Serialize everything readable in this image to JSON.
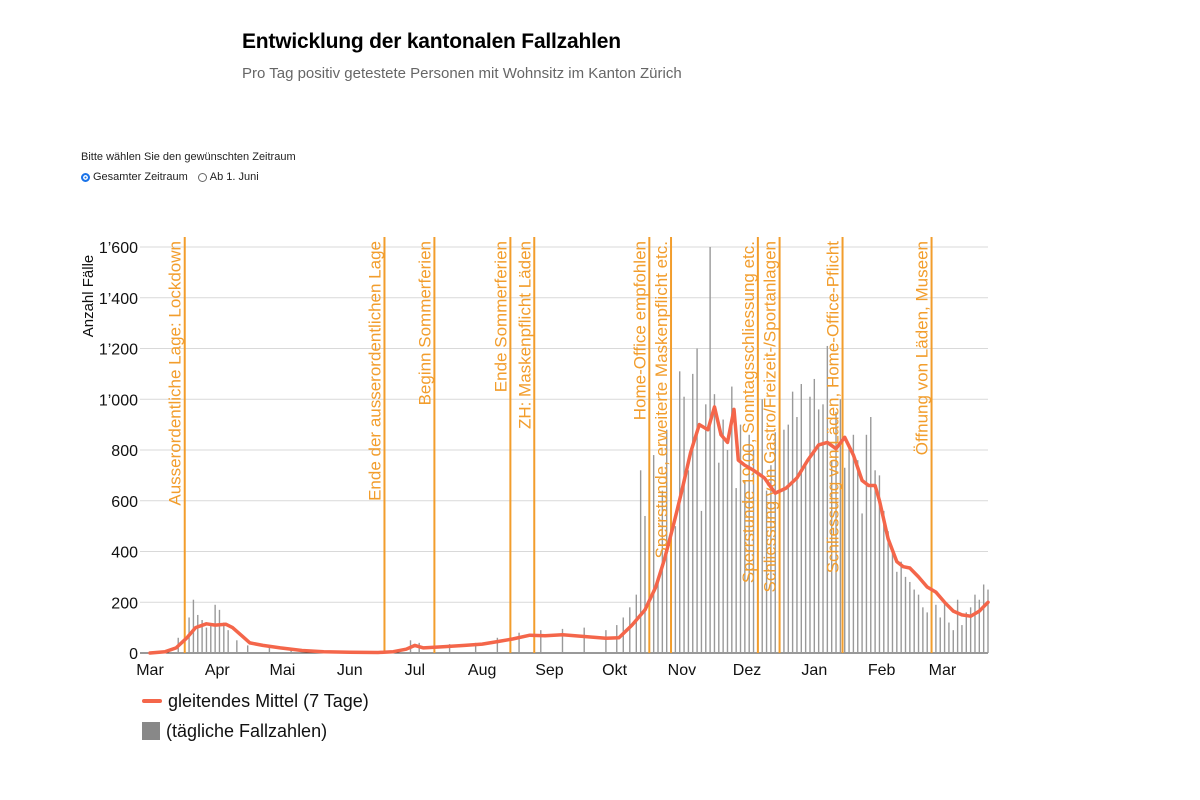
{
  "header": {
    "title": "Entwicklung der kantonalen Fallzahlen",
    "subtitle": "Pro Tag positiv getestete Personen mit Wohnsitz im Kanton Zürich"
  },
  "range_selector": {
    "prompt": "Bitte wählen Sie den gewünschten Zeitraum",
    "options": [
      {
        "label": "Gesamter Zeitraum",
        "selected": true
      },
      {
        "label": "Ab 1. Juni",
        "selected": false
      }
    ]
  },
  "colors": {
    "average_line": "#f4664a",
    "daily_bars": "#999999",
    "event_lines": "#f29d2c",
    "grid": "#d9d9d9"
  },
  "chart_data": {
    "type": "bar",
    "title": "Entwicklung der kantonalen Fallzahlen",
    "ylabel": "Anzahl Fälle",
    "xlabel": "",
    "ylim": [
      0,
      1650
    ],
    "yticks": [
      0,
      200,
      400,
      600,
      800,
      1000,
      1200,
      1400,
      1600
    ],
    "ytick_labels": [
      "0",
      "200",
      "400",
      "600",
      "800",
      "1’000",
      "1’200",
      "1’400",
      "1’600"
    ],
    "x_start": "2020-03-01",
    "x_end": "2021-03-11",
    "xtick_labels": [
      {
        "label": "Mar",
        "day": 0
      },
      {
        "label": "Apr",
        "day": 31
      },
      {
        "label": "Mai",
        "day": 61
      },
      {
        "label": "Jun",
        "day": 92
      },
      {
        "label": "Jul",
        "day": 122
      },
      {
        "label": "Aug",
        "day": 153
      },
      {
        "label": "Sep",
        "day": 184
      },
      {
        "label": "Okt",
        "day": 214
      },
      {
        "label": "Nov",
        "day": 245
      },
      {
        "label": "Dez",
        "day": 275
      },
      {
        "label": "Jan",
        "day": 306
      },
      {
        "label": "Feb",
        "day": 337
      },
      {
        "label": "Mar",
        "day": 365
      }
    ],
    "grid": true,
    "series": [
      {
        "name": "gleitendes Mittel (7 Tage)",
        "type": "line",
        "points": [
          [
            0,
            0
          ],
          [
            7,
            5
          ],
          [
            12,
            20
          ],
          [
            17,
            60
          ],
          [
            21,
            100
          ],
          [
            26,
            115
          ],
          [
            30,
            110
          ],
          [
            35,
            113
          ],
          [
            38,
            100
          ],
          [
            42,
            70
          ],
          [
            46,
            40
          ],
          [
            52,
            30
          ],
          [
            60,
            20
          ],
          [
            70,
            10
          ],
          [
            80,
            5
          ],
          [
            92,
            3
          ],
          [
            105,
            2
          ],
          [
            112,
            5
          ],
          [
            118,
            15
          ],
          [
            122,
            30
          ],
          [
            126,
            20
          ],
          [
            135,
            25
          ],
          [
            145,
            30
          ],
          [
            153,
            35
          ],
          [
            160,
            45
          ],
          [
            167,
            55
          ],
          [
            175,
            70
          ],
          [
            182,
            68
          ],
          [
            190,
            72
          ],
          [
            200,
            65
          ],
          [
            210,
            58
          ],
          [
            216,
            60
          ],
          [
            222,
            110
          ],
          [
            228,
            170
          ],
          [
            233,
            260
          ],
          [
            237,
            370
          ],
          [
            241,
            500
          ],
          [
            245,
            640
          ],
          [
            249,
            790
          ],
          [
            253,
            900
          ],
          [
            257,
            880
          ],
          [
            260,
            970
          ],
          [
            263,
            860
          ],
          [
            266,
            830
          ],
          [
            269,
            960
          ],
          [
            271,
            760
          ],
          [
            274,
            740
          ],
          [
            278,
            720
          ],
          [
            283,
            690
          ],
          [
            288,
            630
          ],
          [
            293,
            650
          ],
          [
            298,
            690
          ],
          [
            303,
            760
          ],
          [
            308,
            820
          ],
          [
            312,
            830
          ],
          [
            316,
            805
          ],
          [
            320,
            850
          ],
          [
            324,
            780
          ],
          [
            328,
            680
          ],
          [
            331,
            660
          ],
          [
            334,
            660
          ],
          [
            336,
            600
          ],
          [
            340,
            450
          ],
          [
            344,
            360
          ],
          [
            347,
            340
          ],
          [
            350,
            335
          ],
          [
            354,
            300
          ],
          [
            358,
            260
          ],
          [
            362,
            240
          ],
          [
            366,
            200
          ],
          [
            370,
            165
          ],
          [
            374,
            150
          ],
          [
            378,
            145
          ],
          [
            382,
            165
          ],
          [
            386,
            200
          ]
        ]
      },
      {
        "name": "(tägliche Fallzahlen)",
        "type": "bar",
        "bars": [
          [
            13,
            60
          ],
          [
            16,
            80
          ],
          [
            18,
            140
          ],
          [
            20,
            210
          ],
          [
            22,
            150
          ],
          [
            24,
            130
          ],
          [
            26,
            100
          ],
          [
            28,
            110
          ],
          [
            30,
            190
          ],
          [
            32,
            170
          ],
          [
            34,
            120
          ],
          [
            36,
            90
          ],
          [
            40,
            50
          ],
          [
            45,
            30
          ],
          [
            55,
            25
          ],
          [
            65,
            15
          ],
          [
            120,
            50
          ],
          [
            124,
            40
          ],
          [
            138,
            35
          ],
          [
            150,
            40
          ],
          [
            160,
            60
          ],
          [
            170,
            80
          ],
          [
            180,
            90
          ],
          [
            190,
            95
          ],
          [
            200,
            100
          ],
          [
            210,
            90
          ],
          [
            215,
            110
          ],
          [
            218,
            140
          ],
          [
            221,
            180
          ],
          [
            224,
            230
          ],
          [
            226,
            720
          ],
          [
            228,
            540
          ],
          [
            230,
            330
          ],
          [
            232,
            780
          ],
          [
            234,
            290
          ],
          [
            236,
            640
          ],
          [
            238,
            880
          ],
          [
            240,
            750
          ],
          [
            242,
            500
          ],
          [
            244,
            1110
          ],
          [
            246,
            1010
          ],
          [
            248,
            720
          ],
          [
            250,
            1100
          ],
          [
            252,
            1200
          ],
          [
            254,
            560
          ],
          [
            256,
            980
          ],
          [
            258,
            1650
          ],
          [
            260,
            1020
          ],
          [
            262,
            750
          ],
          [
            264,
            920
          ],
          [
            266,
            800
          ],
          [
            268,
            1050
          ],
          [
            270,
            650
          ],
          [
            272,
            900
          ],
          [
            274,
            680
          ],
          [
            276,
            860
          ],
          [
            278,
            800
          ],
          [
            280,
            750
          ],
          [
            282,
            1000
          ],
          [
            284,
            640
          ],
          [
            286,
            740
          ],
          [
            288,
            870
          ],
          [
            290,
            780
          ],
          [
            292,
            880
          ],
          [
            294,
            900
          ],
          [
            296,
            1030
          ],
          [
            298,
            930
          ],
          [
            300,
            1060
          ],
          [
            302,
            740
          ],
          [
            304,
            1010
          ],
          [
            306,
            1080
          ],
          [
            308,
            960
          ],
          [
            310,
            980
          ],
          [
            312,
            1210
          ],
          [
            314,
            760
          ],
          [
            316,
            950
          ],
          [
            318,
            1000
          ],
          [
            320,
            730
          ],
          [
            322,
            820
          ],
          [
            324,
            860
          ],
          [
            326,
            760
          ],
          [
            328,
            550
          ],
          [
            330,
            860
          ],
          [
            332,
            930
          ],
          [
            334,
            720
          ],
          [
            336,
            700
          ],
          [
            338,
            560
          ],
          [
            340,
            480
          ],
          [
            342,
            400
          ],
          [
            344,
            320
          ],
          [
            346,
            360
          ],
          [
            348,
            300
          ],
          [
            350,
            280
          ],
          [
            352,
            250
          ],
          [
            354,
            230
          ],
          [
            356,
            180
          ],
          [
            358,
            160
          ],
          [
            360,
            210
          ],
          [
            362,
            190
          ],
          [
            364,
            140
          ],
          [
            366,
            200
          ],
          [
            368,
            120
          ],
          [
            370,
            90
          ],
          [
            372,
            210
          ],
          [
            374,
            110
          ],
          [
            376,
            160
          ],
          [
            378,
            180
          ],
          [
            380,
            230
          ],
          [
            382,
            210
          ],
          [
            384,
            270
          ],
          [
            386,
            250
          ]
        ]
      }
    ],
    "events": [
      {
        "day": 16,
        "label": "Ausserordentliche Lage: Lockdown"
      },
      {
        "day": 108,
        "label": "Ende der ausserordentlichen Lage"
      },
      {
        "day": 131,
        "label": "Beginn Sommerferien"
      },
      {
        "day": 166,
        "label": "Ende Sommerferien"
      },
      {
        "day": 177,
        "label": "ZH: Maskenpflicht Läden"
      },
      {
        "day": 230,
        "label": "Home-Office empfohlen"
      },
      {
        "day": 240,
        "label": "Sperrstunde, erweiterte Maskenpflicht etc."
      },
      {
        "day": 280,
        "label": "Sperrstunde 19.00, Sonntagsschliessung etc."
      },
      {
        "day": 290,
        "label": "Schliessung von Gastro/Freizeit-/Sportanlagen"
      },
      {
        "day": 319,
        "label": "Schliessung von Läden, Home-Office-Pflicht"
      },
      {
        "day": 360,
        "label": "Öffnung von Läden, Museen"
      }
    ],
    "legend": [
      {
        "label": "gleitendes Mittel (7 Tage)",
        "marker": "line"
      },
      {
        "label": "(tägliche Fallzahlen)",
        "marker": "box"
      }
    ]
  }
}
